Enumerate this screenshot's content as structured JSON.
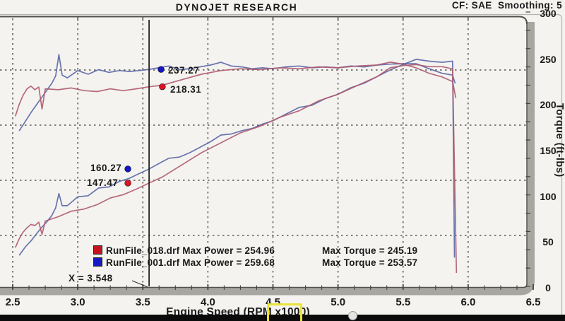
{
  "chart_data": {
    "type": "line",
    "title": "DYNOJET RESEARCH",
    "corr_label": "CF: SAE  Smoothing: 5",
    "x_axis": {
      "label": "Engine Speed (RPM x1000)",
      "highlighted_part": "x1000",
      "range": [
        2.5,
        6.5
      ],
      "ticks": [
        {
          "v": 2.5,
          "label": "2.5"
        },
        {
          "v": 3.0,
          "label": "3.0"
        },
        {
          "v": 3.5,
          "label": "3.5"
        },
        {
          "v": 4.0,
          "label": "4.0"
        },
        {
          "v": 4.5,
          "label": "4.5"
        },
        {
          "v": 5.0,
          "label": "5.0"
        },
        {
          "v": 5.5,
          "label": "5.5"
        },
        {
          "v": 6.0,
          "label": "6.0"
        },
        {
          "v": 6.5,
          "label": "6.5"
        }
      ]
    },
    "y_axis_right": {
      "label": "Torque (ft-lbs)",
      "range": [
        0,
        300
      ],
      "ticks": [
        {
          "v": 300,
          "label": "300"
        },
        {
          "v": 250,
          "label": "250"
        },
        {
          "v": 200,
          "label": "200"
        },
        {
          "v": 150,
          "label": "150"
        },
        {
          "v": 100,
          "label": "100"
        },
        {
          "v": 50,
          "label": "50"
        },
        {
          "v": 0,
          "label": "0"
        }
      ]
    },
    "grid": {
      "style": "dashed",
      "vertical_rpm_lines": [
        2.5,
        3.0,
        3.5,
        4.0,
        4.5,
        5.0,
        5.5,
        6.0
      ],
      "horizontal_power_lines": [
        250,
        200,
        150,
        100
      ]
    },
    "cursor": {
      "x_label": "X = 3.548",
      "rpm": 3.548,
      "readouts": [
        {
          "label": "237.27",
          "value": 237.27,
          "axis": "torque",
          "run": "RunFile_001.drf",
          "dot_color": "#1616c8",
          "dot_rpm": 3.64
        },
        {
          "label": "218.31",
          "value": 218.31,
          "axis": "torque",
          "run": "RunFile_018.drf",
          "dot_color": "#dc1424",
          "dot_rpm": 3.65
        },
        {
          "label": "160.27",
          "value": 160.27,
          "axis": "power",
          "run": "RunFile_001.drf",
          "dot_color": "#1616c8",
          "dot_rpm": 3.385
        },
        {
          "label": "147.47",
          "value": 147.47,
          "axis": "power",
          "run": "RunFile_018.drf",
          "dot_color": "#dc1424",
          "dot_rpm": 3.385
        }
      ]
    },
    "legend": [
      {
        "swatch_color": "#c41420",
        "label_left": "RunFile_018.drf Max Power = 254.96",
        "label_right": "Max Torque = 245.19",
        "file": "RunFile_018.drf",
        "max_power": 254.96,
        "max_torque": 245.19
      },
      {
        "swatch_color": "#1818c0",
        "label_left": "RunFile_001.drf Max Power = 259.68",
        "label_right": "Max Torque = 253.57",
        "file": "RunFile_001.drf",
        "max_power": 259.68,
        "max_torque": 253.57
      }
    ],
    "series": [
      {
        "name": "RunFile_001.drf Torque",
        "axis": "torque",
        "color": "#5a66a6",
        "points": [
          [
            2.55,
            170
          ],
          [
            2.6,
            181
          ],
          [
            2.64,
            190
          ],
          [
            2.68,
            198
          ],
          [
            2.72,
            206
          ],
          [
            2.76,
            214
          ],
          [
            2.8,
            222
          ],
          [
            2.83,
            230
          ],
          [
            2.855,
            253.57
          ],
          [
            2.88,
            231
          ],
          [
            2.92,
            228
          ],
          [
            3.0,
            236
          ],
          [
            3.08,
            232
          ],
          [
            3.16,
            237
          ],
          [
            3.24,
            234
          ],
          [
            3.32,
            236
          ],
          [
            3.4,
            235
          ],
          [
            3.47,
            236
          ],
          [
            3.548,
            237.27
          ],
          [
            3.62,
            239
          ],
          [
            3.7,
            241
          ],
          [
            3.78,
            237
          ],
          [
            3.86,
            238
          ],
          [
            3.94,
            240
          ],
          [
            4.02,
            242
          ],
          [
            4.1,
            245
          ],
          [
            4.18,
            241
          ],
          [
            4.26,
            240
          ],
          [
            4.34,
            238
          ],
          [
            4.42,
            239
          ],
          [
            4.5,
            238
          ],
          [
            4.6,
            240
          ],
          [
            4.7,
            241
          ],
          [
            4.8,
            239
          ],
          [
            4.9,
            240
          ],
          [
            5.0,
            239
          ],
          [
            5.1,
            241
          ],
          [
            5.2,
            240
          ],
          [
            5.3,
            242
          ],
          [
            5.4,
            243
          ],
          [
            5.5,
            243.5
          ],
          [
            5.6,
            243.5
          ],
          [
            5.7,
            238
          ],
          [
            5.8,
            233
          ],
          [
            5.88,
            231
          ],
          [
            5.9,
            222
          ]
        ]
      },
      {
        "name": "RunFile_018.drf Torque",
        "axis": "torque",
        "color": "#b05a6e",
        "points": [
          [
            2.52,
            186
          ],
          [
            2.55,
            199
          ],
          [
            2.58,
            209
          ],
          [
            2.61,
            216
          ],
          [
            2.64,
            219
          ],
          [
            2.67,
            215
          ],
          [
            2.7,
            218
          ],
          [
            2.725,
            194
          ],
          [
            2.75,
            216
          ],
          [
            2.85,
            215
          ],
          [
            2.95,
            217
          ],
          [
            3.05,
            214
          ],
          [
            3.15,
            213
          ],
          [
            3.25,
            216
          ],
          [
            3.35,
            214
          ],
          [
            3.45,
            216
          ],
          [
            3.548,
            218.31
          ],
          [
            3.65,
            220
          ],
          [
            3.8,
            226
          ],
          [
            3.95,
            232
          ],
          [
            4.1,
            236
          ],
          [
            4.25,
            238
          ],
          [
            4.4,
            237
          ],
          [
            4.55,
            239
          ],
          [
            4.7,
            238
          ],
          [
            4.85,
            240
          ],
          [
            5.0,
            239
          ],
          [
            5.15,
            241
          ],
          [
            5.3,
            242
          ],
          [
            5.4,
            245.19
          ],
          [
            5.5,
            243
          ],
          [
            5.6,
            239
          ],
          [
            5.7,
            233
          ],
          [
            5.8,
            229
          ],
          [
            5.88,
            224
          ],
          [
            5.905,
            206
          ]
        ]
      },
      {
        "name": "RunFile_001.drf Power",
        "axis": "power",
        "color": "#5a66a6",
        "points": [
          [
            2.55,
            82
          ],
          [
            2.6,
            90
          ],
          [
            2.64,
            95
          ],
          [
            2.68,
            101
          ],
          [
            2.72,
            107
          ],
          [
            2.76,
            112
          ],
          [
            2.8,
            118
          ],
          [
            2.83,
            125
          ],
          [
            2.855,
            138
          ],
          [
            2.88,
            127
          ],
          [
            2.92,
            127
          ],
          [
            3.0,
            135
          ],
          [
            3.08,
            136
          ],
          [
            3.16,
            143
          ],
          [
            3.24,
            144
          ],
          [
            3.32,
            149
          ],
          [
            3.4,
            152
          ],
          [
            3.47,
            156
          ],
          [
            3.548,
            160.27
          ],
          [
            3.62,
            165
          ],
          [
            3.7,
            170
          ],
          [
            3.78,
            171
          ],
          [
            3.86,
            175
          ],
          [
            3.94,
            180
          ],
          [
            4.02,
            185
          ],
          [
            4.1,
            191
          ],
          [
            4.18,
            192
          ],
          [
            4.26,
            195
          ],
          [
            4.34,
            197
          ],
          [
            4.42,
            201
          ],
          [
            4.5,
            204
          ],
          [
            4.6,
            210
          ],
          [
            4.7,
            216
          ],
          [
            4.8,
            218
          ],
          [
            4.9,
            224
          ],
          [
            5.0,
            228
          ],
          [
            5.1,
            234
          ],
          [
            5.2,
            238
          ],
          [
            5.3,
            244
          ],
          [
            5.4,
            250
          ],
          [
            5.5,
            255
          ],
          [
            5.6,
            259.68
          ],
          [
            5.7,
            258
          ],
          [
            5.8,
            257
          ],
          [
            5.88,
            258
          ],
          [
            5.895,
            80
          ]
        ]
      },
      {
        "name": "RunFile_018.drf Power",
        "axis": "power",
        "color": "#b05a6e",
        "points": [
          [
            2.52,
            89
          ],
          [
            2.55,
            97
          ],
          [
            2.58,
            103
          ],
          [
            2.61,
            107
          ],
          [
            2.64,
            110
          ],
          [
            2.67,
            109
          ],
          [
            2.7,
            112
          ],
          [
            2.725,
            101
          ],
          [
            2.75,
            113
          ],
          [
            2.85,
            117
          ],
          [
            2.95,
            122
          ],
          [
            3.05,
            124
          ],
          [
            3.15,
            128
          ],
          [
            3.25,
            134
          ],
          [
            3.35,
            137
          ],
          [
            3.45,
            142
          ],
          [
            3.548,
            147.47
          ],
          [
            3.65,
            153
          ],
          [
            3.8,
            164
          ],
          [
            3.95,
            175
          ],
          [
            4.1,
            184
          ],
          [
            4.25,
            193
          ],
          [
            4.4,
            199
          ],
          [
            4.55,
            207
          ],
          [
            4.7,
            213
          ],
          [
            4.85,
            222
          ],
          [
            5.0,
            228
          ],
          [
            5.15,
            236
          ],
          [
            5.3,
            244
          ],
          [
            5.4,
            252
          ],
          [
            5.5,
            254
          ],
          [
            5.6,
            254.96
          ],
          [
            5.7,
            253
          ],
          [
            5.8,
            253
          ],
          [
            5.88,
            251
          ],
          [
            5.91,
            66
          ]
        ]
      }
    ]
  }
}
